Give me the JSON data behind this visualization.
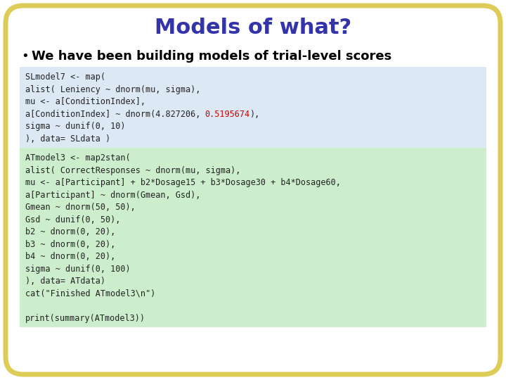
{
  "title": "Models of what?",
  "title_color": "#3333aa",
  "title_fontsize": 22,
  "title_fontweight": "bold",
  "bullet_text": "We have been building models of trial-level scores",
  "bullet_fontsize": 13,
  "bullet_fontweight": "bold",
  "bullet_color": "#000000",
  "bg_color": "#ffffff",
  "border_color": "#ddcc55",
  "border_width": 5,
  "code_block1_bg": "#dde8f5",
  "code_block2_bg": "#cceecc",
  "code_block1_lines": [
    "SLmodel7 <- map(",
    "alist( Leniency ~ dnorm(mu, sigma),",
    "mu <- a[ConditionIndex],",
    [
      "a[ConditionIndex] ~ dnorm(4.827206, ",
      "0.5195674",
      "),"
    ],
    "sigma ~ dunif(0, 10)",
    "), data= SLdata )"
  ],
  "code_block2_lines": [
    "ATmodel3 <- map2stan(",
    "alist( CorrectResponses ~ dnorm(mu, sigma),",
    "mu <- a[Participant] + b2*Dosage15 + b3*Dosage30 + b4*Dosage60,",
    "a[Participant] ~ dnorm(Gmean, Gsd),",
    "Gmean ~ dnorm(50, 50),",
    "Gsd ~ dunif(0, 50),",
    "b2 ~ dnorm(0, 20),",
    "b3 ~ dnorm(0, 20),",
    "b4 ~ dnorm(0, 20),",
    "sigma ~ dunif(0, 100)",
    "), data= ATdata)",
    "cat(\"Finished ATmodel3\\n\")",
    "",
    "print(summary(ATmodel3))"
  ],
  "code_fontsize": 8.5,
  "code_color": "#222222",
  "code_highlight_color": "#cc0000",
  "code_font": "monospace"
}
